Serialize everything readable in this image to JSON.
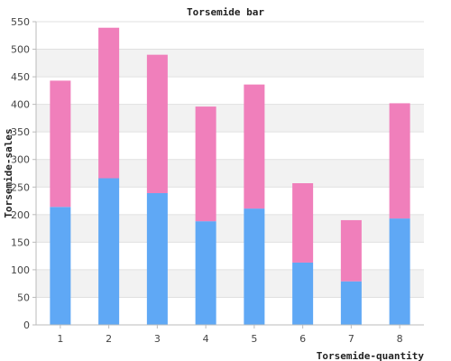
{
  "chart_data": {
    "type": "bar",
    "stacked": true,
    "title": "Torsemide bar",
    "xlabel": "Torsemide-quantity",
    "ylabel": "Torsemide-sales",
    "categories": [
      "1",
      "2",
      "3",
      "4",
      "5",
      "6",
      "7",
      "8"
    ],
    "series": [
      {
        "color": "#5fa8f5",
        "values": [
          214,
          266,
          239,
          188,
          211,
          113,
          79,
          193
        ]
      },
      {
        "color": "#f07fbb",
        "values": [
          229,
          273,
          251,
          208,
          225,
          144,
          111,
          209
        ]
      }
    ],
    "ylim": [
      0,
      550
    ],
    "yticks": [
      0,
      50,
      100,
      150,
      200,
      250,
      300,
      350,
      400,
      450,
      500,
      550
    ],
    "grid": "horizontal, alternating bands",
    "legend": "none"
  }
}
